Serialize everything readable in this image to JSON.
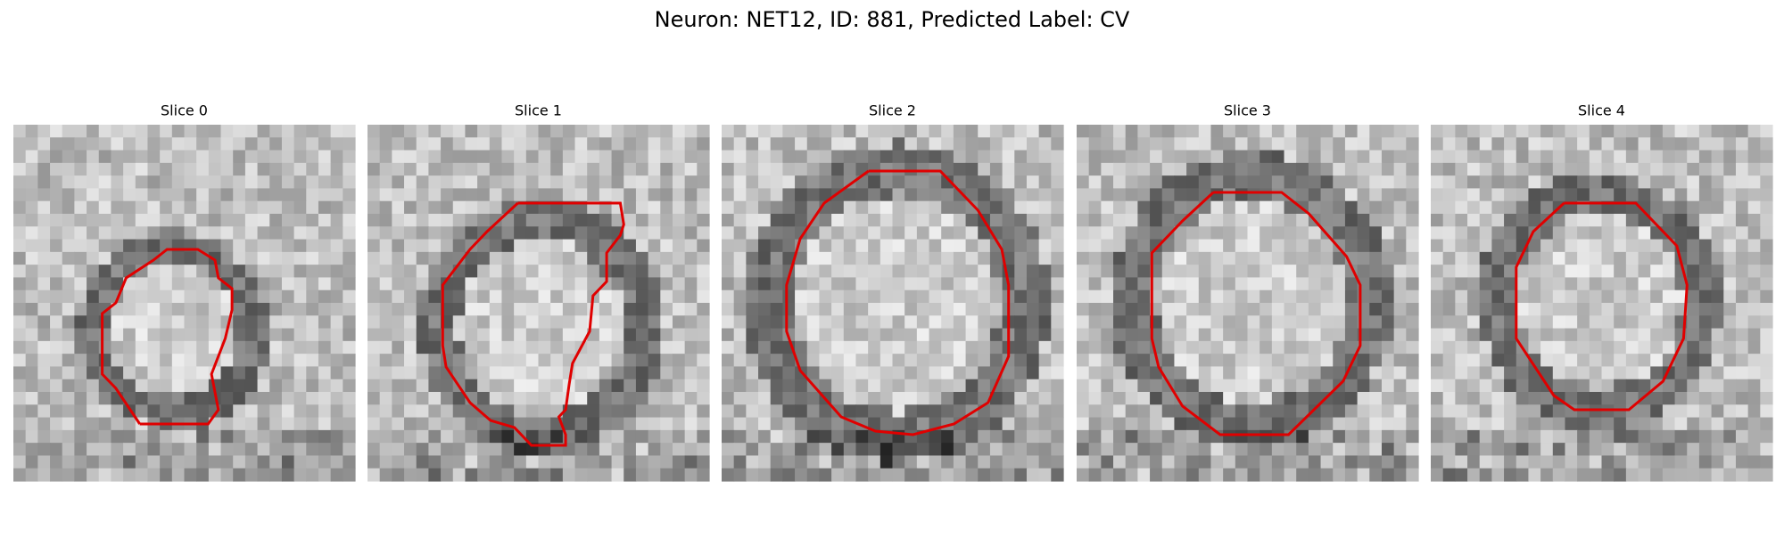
{
  "title": "Neuron: NET12, ID: 881, Predicted Label: CV",
  "panels": [
    {
      "title": "Slice 0"
    },
    {
      "title": "Slice 1"
    },
    {
      "title": "Slice 2"
    },
    {
      "title": "Slice 3"
    },
    {
      "title": "Slice 4"
    }
  ]
}
